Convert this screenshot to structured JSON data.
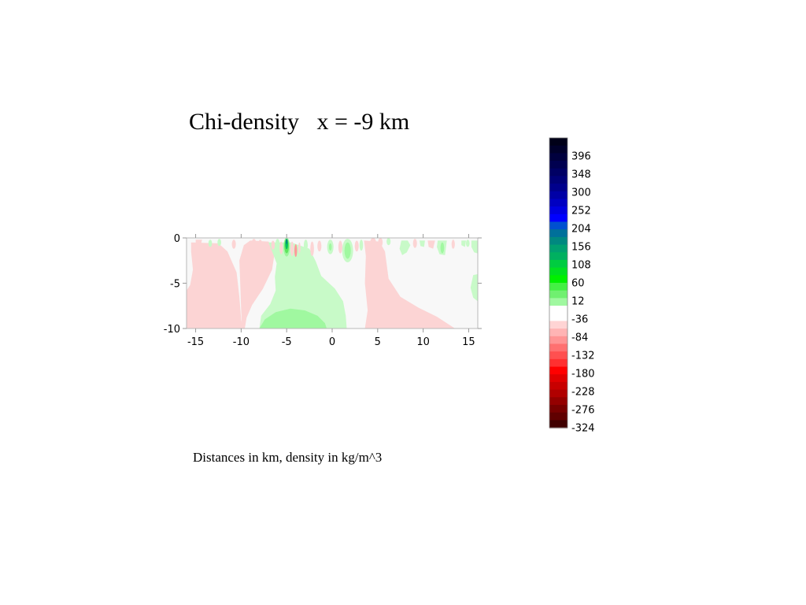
{
  "title": "Chi-density   x = -9 km",
  "caption": "Distances in km, density in kg/m^3",
  "chart_data": {
    "type": "heatmap",
    "title": "Chi-density   x = -9 km",
    "xlabel": "",
    "ylabel": "",
    "xlim": [
      -16,
      16
    ],
    "ylim": [
      -10,
      0
    ],
    "x_ticks": [
      -15,
      -10,
      -5,
      0,
      5,
      10,
      15
    ],
    "y_ticks": [
      0,
      -5,
      -10
    ],
    "colorbar": {
      "tick_labels": [
        "396",
        "348",
        "300",
        "252",
        "204",
        "156",
        "108",
        "60",
        "12",
        "-36",
        "-84",
        "-132",
        "-180",
        "-228",
        "-276",
        "-324"
      ],
      "colors": [
        "#000018",
        "#00002a",
        "#00003e",
        "#000050",
        "#000064",
        "#000078",
        "#00008c",
        "#0000a6",
        "#0000c2",
        "#0000e0",
        "#0000ff",
        "#0050d0",
        "#00709a",
        "#008880",
        "#00a070",
        "#00b060",
        "#00cc40",
        "#00e020",
        "#00f000",
        "#44f044",
        "#70f070",
        "#a0f8a0",
        "#ffffff",
        "#ffffff",
        "#ffd4d4",
        "#ffb4b4",
        "#ff9494",
        "#ff7070",
        "#ff5050",
        "#ff3030",
        "#ff0000",
        "#e00000",
        "#c80000",
        "#b00000",
        "#940000",
        "#780000",
        "#600000",
        "#400000"
      ]
    },
    "regions": [
      {
        "level": "-36",
        "color": "#fcd4d4",
        "path": [
          [
            -15.5,
            -0.5
          ],
          [
            -12.5,
            -0.6
          ],
          [
            -11.5,
            -1.5
          ],
          [
            -10.5,
            -3.8
          ],
          [
            -10.2,
            -6.5
          ],
          [
            -10,
            -9
          ],
          [
            -9.8,
            -10
          ],
          [
            -16,
            -10
          ],
          [
            -16,
            -5.8
          ],
          [
            -15.6,
            -5.2
          ],
          [
            -15.3,
            -3.5
          ],
          [
            -15.5,
            -1.5
          ]
        ]
      },
      {
        "level": "-36",
        "color": "#fcd4d4",
        "path": [
          [
            -9,
            -0.3
          ],
          [
            -7,
            -0.4
          ],
          [
            -6.3,
            -1.5
          ],
          [
            -6.6,
            -3.5
          ],
          [
            -7.6,
            -5.6
          ],
          [
            -8.8,
            -7.4
          ],
          [
            -9.4,
            -8.8
          ],
          [
            -9.6,
            -10
          ],
          [
            -9.9,
            -10
          ],
          [
            -10,
            -8
          ],
          [
            -10.1,
            -5
          ],
          [
            -10.2,
            -2.5
          ],
          [
            -9.7,
            -0.8
          ]
        ]
      },
      {
        "level": "-36",
        "color": "#fcd4d4",
        "path": [
          [
            3.5,
            -0.3
          ],
          [
            5.2,
            -0.4
          ],
          [
            5.8,
            -1.5
          ],
          [
            6.2,
            -4.5
          ],
          [
            7.5,
            -6.5
          ],
          [
            9.5,
            -7.7
          ],
          [
            11.5,
            -8.7
          ],
          [
            13.5,
            -10
          ],
          [
            3.6,
            -10
          ],
          [
            3.9,
            -8
          ],
          [
            3.6,
            -5
          ],
          [
            3.7,
            -2
          ]
        ]
      },
      {
        "level": "-36",
        "color": "#fcd4d4",
        "path": [
          [
            -15,
            -0.2
          ],
          [
            -14.3,
            -0.2
          ],
          [
            -14.5,
            -1.1
          ],
          [
            -15,
            -0.9
          ]
        ]
      },
      {
        "level": "-36",
        "color": "#fcd4d4",
        "path": [
          [
            10.5,
            -0.3
          ],
          [
            11.3,
            -0.3
          ],
          [
            11.1,
            -1.2
          ],
          [
            10.6,
            -1.0
          ]
        ]
      },
      {
        "level": "12",
        "color": "#c8fac8",
        "path": [
          [
            -7,
            -0.5
          ],
          [
            -4.5,
            -0.5
          ],
          [
            -2.5,
            -1.2
          ],
          [
            -1.8,
            -2.6
          ],
          [
            -1.2,
            -4.2
          ],
          [
            0.3,
            -5.6
          ],
          [
            1.2,
            -7
          ],
          [
            1.5,
            -8.6
          ],
          [
            1.6,
            -10
          ],
          [
            -8,
            -10
          ],
          [
            -7.8,
            -8.6
          ],
          [
            -6.8,
            -7.3
          ],
          [
            -6.2,
            -5.8
          ],
          [
            -6.3,
            -4.3
          ],
          [
            -6.1,
            -2.8
          ],
          [
            -6.6,
            -1.5
          ]
        ]
      },
      {
        "level": "60",
        "color": "#a0f8a0",
        "path": [
          [
            -8,
            -10
          ],
          [
            -7.4,
            -9
          ],
          [
            -6.2,
            -8.2
          ],
          [
            -4.6,
            -7.8
          ],
          [
            -3,
            -8
          ],
          [
            -1.6,
            -8.6
          ],
          [
            -0.8,
            -9.4
          ],
          [
            -0.6,
            -10
          ]
        ]
      },
      {
        "level": "12",
        "color": "#c8fac8",
        "path": [
          [
            15.5,
            -4.1
          ],
          [
            16,
            -4
          ],
          [
            16,
            -7
          ],
          [
            15.5,
            -6.6
          ],
          [
            15.2,
            -5.5
          ]
        ]
      },
      {
        "level": "12",
        "color": "#c8fac8",
        "path": [
          [
            7.6,
            -0.3
          ],
          [
            8.3,
            -0.3
          ],
          [
            8.6,
            -0.8
          ],
          [
            8.2,
            -1.6
          ],
          [
            7.7,
            -1.9
          ],
          [
            7.4,
            -1.2
          ]
        ]
      },
      {
        "level": "12",
        "color": "#c8fac8",
        "path": [
          [
            9.6,
            -0.3
          ],
          [
            10.2,
            -0.3
          ],
          [
            10.1,
            -1
          ],
          [
            9.7,
            -0.9
          ]
        ]
      },
      {
        "level": "12",
        "color": "#c8fac8",
        "path": [
          [
            11.6,
            -0.3
          ],
          [
            12.6,
            -0.3
          ],
          [
            12.4,
            -1.9
          ],
          [
            11.8,
            -1.8
          ],
          [
            11.5,
            -1.0
          ]
        ]
      },
      {
        "level": "12",
        "color": "#c8fac8",
        "path": [
          [
            14.2,
            -0.3
          ],
          [
            14.7,
            -0.3
          ],
          [
            14.6,
            -1.0
          ],
          [
            14.2,
            -0.8
          ]
        ]
      },
      {
        "level": "12",
        "color": "#c8fac8",
        "path": [
          [
            15.3,
            -0.3
          ],
          [
            16,
            -0.3
          ],
          [
            16,
            -1.7
          ],
          [
            15.6,
            -1.6
          ],
          [
            15.3,
            -1.0
          ]
        ]
      }
    ],
    "blobs": [
      {
        "x": -5.0,
        "y": -1.0,
        "rx": 0.35,
        "ry": 1.05,
        "color": "#9ef59e"
      },
      {
        "x": -5.0,
        "y": -0.9,
        "rx": 0.25,
        "ry": 0.8,
        "color": "#5ee65e"
      },
      {
        "x": -5.0,
        "y": -0.7,
        "rx": 0.15,
        "ry": 0.55,
        "color": "#00c060"
      },
      {
        "x": -5.0,
        "y": -0.4,
        "rx": 0.1,
        "ry": 0.3,
        "color": "#008b80"
      },
      {
        "x": -4.4,
        "y": -1.2,
        "rx": 0.18,
        "ry": 0.8,
        "color": "#fcd4d4"
      },
      {
        "x": -5.6,
        "y": -1.1,
        "rx": 0.18,
        "ry": 0.7,
        "color": "#fcd4d4"
      },
      {
        "x": -4.0,
        "y": -1.4,
        "rx": 0.15,
        "ry": 0.7,
        "color": "#ff9a9a"
      },
      {
        "x": -3.6,
        "y": -1.1,
        "rx": 0.12,
        "ry": 0.6,
        "color": "#fcd4d4"
      },
      {
        "x": -6.0,
        "y": -0.6,
        "rx": 0.22,
        "ry": 0.5,
        "color": "#c8fac8"
      },
      {
        "x": -6.5,
        "y": -0.8,
        "rx": 0.2,
        "ry": 0.5,
        "color": "#fcd4d4"
      },
      {
        "x": -2.9,
        "y": -0.8,
        "rx": 0.22,
        "ry": 0.6,
        "color": "#c8fac8"
      },
      {
        "x": -2.2,
        "y": -1.2,
        "rx": 0.2,
        "ry": 0.8,
        "color": "#fcd4d4"
      },
      {
        "x": -1.4,
        "y": -0.9,
        "rx": 0.22,
        "ry": 0.6,
        "color": "#fcd4d4"
      },
      {
        "x": -0.2,
        "y": -1.0,
        "rx": 0.35,
        "ry": 0.8,
        "color": "#c8fac8"
      },
      {
        "x": -0.2,
        "y": -1.0,
        "rx": 0.15,
        "ry": 0.4,
        "color": "#a0f8a0"
      },
      {
        "x": 1.7,
        "y": -1.4,
        "rx": 0.6,
        "ry": 1.3,
        "color": "#c8fac8"
      },
      {
        "x": 1.7,
        "y": -1.4,
        "rx": 0.35,
        "ry": 0.9,
        "color": "#a0f8a0"
      },
      {
        "x": 0.9,
        "y": -1.0,
        "rx": 0.22,
        "ry": 0.7,
        "color": "#fcd4d4"
      },
      {
        "x": 2.7,
        "y": -0.9,
        "rx": 0.22,
        "ry": 0.6,
        "color": "#fcd4d4"
      },
      {
        "x": 3.2,
        "y": -0.8,
        "rx": 0.2,
        "ry": 0.6,
        "color": "#c8fac8"
      },
      {
        "x": 4.5,
        "y": -0.6,
        "rx": 0.35,
        "ry": 0.6,
        "color": "#fcd4d4"
      },
      {
        "x": 5.3,
        "y": -0.5,
        "rx": 0.25,
        "ry": 0.5,
        "color": "#fcd4d4"
      },
      {
        "x": 6.2,
        "y": -0.4,
        "rx": 0.22,
        "ry": 0.4,
        "color": "#c8fac8"
      },
      {
        "x": -8.6,
        "y": -0.6,
        "rx": 0.25,
        "ry": 0.5,
        "color": "#fcd4d4"
      },
      {
        "x": -7.9,
        "y": -0.8,
        "rx": 0.22,
        "ry": 0.6,
        "color": "#fcd4d4"
      },
      {
        "x": -10.8,
        "y": -0.7,
        "rx": 0.22,
        "ry": 0.5,
        "color": "#fcd4d4"
      },
      {
        "x": -12.4,
        "y": -0.5,
        "rx": 0.2,
        "ry": 0.4,
        "color": "#c8fac8"
      },
      {
        "x": -13.4,
        "y": -0.6,
        "rx": 0.2,
        "ry": 0.4,
        "color": "#c8fac8"
      },
      {
        "x": 9.1,
        "y": -0.6,
        "rx": 0.22,
        "ry": 0.5,
        "color": "#fcd4d4"
      },
      {
        "x": 12.1,
        "y": -1.1,
        "rx": 0.2,
        "ry": 0.6,
        "color": "#a0f8a0"
      },
      {
        "x": 13.3,
        "y": -0.7,
        "rx": 0.18,
        "ry": 0.5,
        "color": "#fcd4d4"
      },
      {
        "x": 14.9,
        "y": -0.6,
        "rx": 0.2,
        "ry": 0.4,
        "color": "#c8fac8"
      }
    ]
  }
}
